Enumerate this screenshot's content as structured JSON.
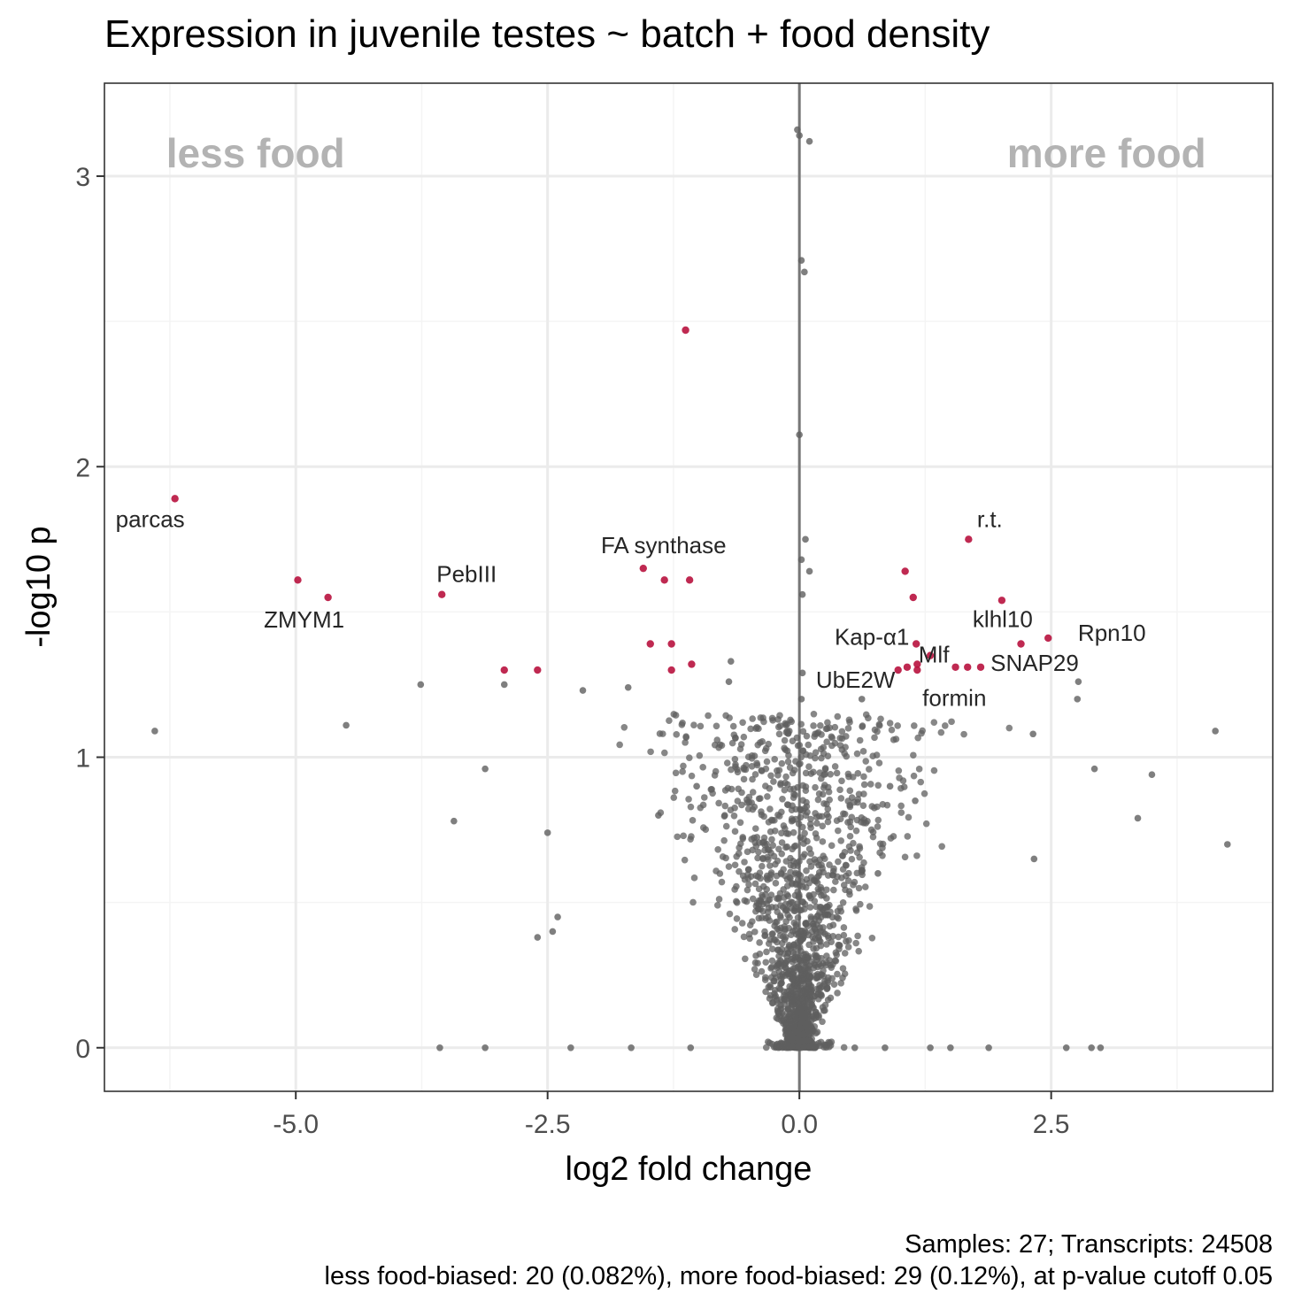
{
  "chart_data": {
    "type": "scatter",
    "title": "Expression in juvenile testes ~ batch + food density",
    "xlabel": "log2 fold change",
    "ylabel": "-log10 p",
    "xlim": [
      -6.9,
      4.7
    ],
    "ylim": [
      -0.15,
      3.32
    ],
    "x_ticks": [
      -5.0,
      -2.5,
      0.0,
      2.5
    ],
    "x_tick_labels": [
      "-5.0",
      "-2.5",
      "0.0",
      "2.5"
    ],
    "y_ticks": [
      0,
      1,
      2,
      3
    ],
    "y_tick_labels": [
      "0",
      "1",
      "2",
      "3"
    ],
    "grid": true,
    "vline_x": 0,
    "region_labels": [
      {
        "text": "less food",
        "x": -5.4,
        "y": 3.03
      },
      {
        "text": "more food",
        "x": 3.05,
        "y": 3.03
      }
    ],
    "colors": {
      "background_points": "#5f5f5f",
      "significant_points": "#b8123e",
      "region_text": "#b3b3b3",
      "grid": "#ebebeb",
      "vline": "#777777"
    },
    "significant": [
      {
        "x": -6.2,
        "y": 1.89,
        "label": "parcas"
      },
      {
        "x": -4.98,
        "y": 1.61,
        "label": ""
      },
      {
        "x": -4.68,
        "y": 1.55,
        "label": "ZMYM1"
      },
      {
        "x": -3.55,
        "y": 1.56,
        "label": "PebIII"
      },
      {
        "x": -2.93,
        "y": 1.3,
        "label": ""
      },
      {
        "x": -2.6,
        "y": 1.3,
        "label": ""
      },
      {
        "x": -1.55,
        "y": 1.65,
        "label": "FA synthase"
      },
      {
        "x": -1.34,
        "y": 1.61,
        "label": ""
      },
      {
        "x": -1.09,
        "y": 1.61,
        "label": ""
      },
      {
        "x": -1.48,
        "y": 1.39,
        "label": ""
      },
      {
        "x": -1.27,
        "y": 1.39,
        "label": ""
      },
      {
        "x": -1.27,
        "y": 1.3,
        "label": ""
      },
      {
        "x": -1.07,
        "y": 1.32,
        "label": ""
      },
      {
        "x": -1.13,
        "y": 2.47,
        "label": ""
      },
      {
        "x": 1.68,
        "y": 1.75,
        "label": "r.t."
      },
      {
        "x": 1.05,
        "y": 1.64,
        "label": ""
      },
      {
        "x": 1.13,
        "y": 1.55,
        "label": ""
      },
      {
        "x": 2.01,
        "y": 1.54,
        "label": "klhl10"
      },
      {
        "x": 2.47,
        "y": 1.41,
        "label": "Rpn10"
      },
      {
        "x": 2.2,
        "y": 1.39,
        "label": ""
      },
      {
        "x": 1.16,
        "y": 1.39,
        "label": "Kap-α1"
      },
      {
        "x": 1.3,
        "y": 1.35,
        "label": "Mlf"
      },
      {
        "x": 1.8,
        "y": 1.31,
        "label": "SNAP29"
      },
      {
        "x": 1.55,
        "y": 1.31,
        "label": ""
      },
      {
        "x": 1.67,
        "y": 1.31,
        "label": ""
      },
      {
        "x": 0.98,
        "y": 1.3,
        "label": "UbE2W"
      },
      {
        "x": 1.07,
        "y": 1.31,
        "label": ""
      },
      {
        "x": 1.17,
        "y": 1.32,
        "label": "formin"
      },
      {
        "x": 1.17,
        "y": 1.3,
        "label": ""
      }
    ],
    "nonsignificant_sample": [
      {
        "x": 0.0,
        "y": 3.14
      },
      {
        "x": 0.1,
        "y": 3.12
      },
      {
        "x": -0.02,
        "y": 3.16
      },
      {
        "x": 0.02,
        "y": 2.71
      },
      {
        "x": 0.05,
        "y": 2.67
      },
      {
        "x": 0.0,
        "y": 2.11
      },
      {
        "x": 0.06,
        "y": 1.75
      },
      {
        "x": 0.02,
        "y": 1.68
      },
      {
        "x": 0.1,
        "y": 1.64
      },
      {
        "x": 0.03,
        "y": 1.56
      },
      {
        "x": -6.4,
        "y": 1.09
      },
      {
        "x": -4.5,
        "y": 1.11
      },
      {
        "x": -3.76,
        "y": 1.25
      },
      {
        "x": -3.12,
        "y": 0.96
      },
      {
        "x": -3.43,
        "y": 0.78
      },
      {
        "x": -2.93,
        "y": 1.25
      },
      {
        "x": -2.5,
        "y": 0.74
      },
      {
        "x": -2.6,
        "y": 0.38
      },
      {
        "x": -2.45,
        "y": 0.4
      },
      {
        "x": -2.4,
        "y": 0.45
      },
      {
        "x": -3.57,
        "y": 0.0
      },
      {
        "x": -3.12,
        "y": 0.0
      },
      {
        "x": -2.27,
        "y": 0.0
      },
      {
        "x": -1.67,
        "y": 0.0
      },
      {
        "x": -1.08,
        "y": 0.0
      },
      {
        "x": 0.55,
        "y": 0.0
      },
      {
        "x": 0.85,
        "y": 0.0
      },
      {
        "x": 1.3,
        "y": 0.0
      },
      {
        "x": 1.5,
        "y": 0.0
      },
      {
        "x": 1.88,
        "y": 0.0
      },
      {
        "x": 2.65,
        "y": 0.0
      },
      {
        "x": 2.9,
        "y": 0.0
      },
      {
        "x": 2.99,
        "y": 0.0
      },
      {
        "x": 4.13,
        "y": 1.09
      },
      {
        "x": 4.25,
        "y": 0.7
      },
      {
        "x": 3.5,
        "y": 0.94
      },
      {
        "x": 3.36,
        "y": 0.79
      },
      {
        "x": 2.93,
        "y": 0.96
      },
      {
        "x": 2.33,
        "y": 0.65
      },
      {
        "x": 2.76,
        "y": 1.2
      },
      {
        "x": 2.77,
        "y": 1.26
      },
      {
        "x": 2.32,
        "y": 1.08
      },
      {
        "x": -0.68,
        "y": 1.33
      },
      {
        "x": -0.7,
        "y": 1.26
      },
      {
        "x": -1.7,
        "y": 1.24
      },
      {
        "x": -2.15,
        "y": 1.23
      },
      {
        "x": 0.62,
        "y": 1.2
      },
      {
        "x": 0.03,
        "y": 1.29
      },
      {
        "x": 0.02,
        "y": 1.2
      },
      {
        "x": 0.78,
        "y": 0.6
      },
      {
        "x": 0.9,
        "y": 0.9
      },
      {
        "x": 1.15,
        "y": 0.85
      },
      {
        "x": -1.02,
        "y": 0.9
      },
      {
        "x": -1.4,
        "y": 0.8
      }
    ],
    "dense_cloud": {
      "shape": "V",
      "center_x": 0.0,
      "note_points_count_shown": "Transcripts: 24508"
    }
  },
  "caption": {
    "line1": "Samples: 27; Transcripts: 24508",
    "line2": "less food-biased: 20 (0.082%), more food-biased: 29 (0.12%), at p-value cutoff 0.05"
  }
}
